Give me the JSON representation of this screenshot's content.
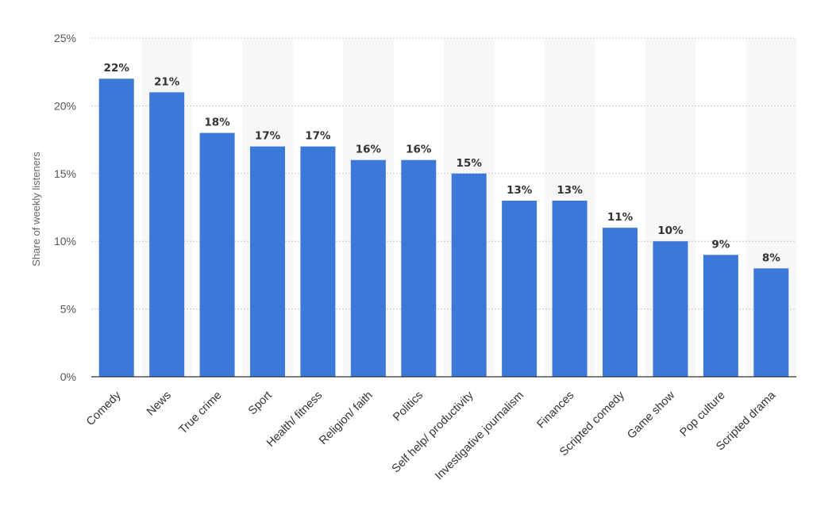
{
  "chart_data": {
    "type": "bar",
    "categories": [
      "Comedy",
      "News",
      "True crime",
      "Sport",
      "Health/ fitness",
      "Religion/ faith",
      "Politics",
      "Self help/ productivity",
      "Investigative journalism",
      "Finances",
      "Scripted comedy",
      "Game show",
      "Pop culture",
      "Scripted drama"
    ],
    "values": [
      22,
      21,
      18,
      17,
      17,
      16,
      16,
      15,
      13,
      13,
      11,
      10,
      9,
      8
    ],
    "data_labels": [
      "22%",
      "21%",
      "18%",
      "17%",
      "17%",
      "16%",
      "16%",
      "15%",
      "13%",
      "13%",
      "11%",
      "10%",
      "9%",
      "8%"
    ],
    "title": "",
    "xlabel": "",
    "ylabel": "Share of weekly listeners",
    "ylim": [
      0,
      25
    ],
    "yticks": [
      0,
      5,
      10,
      15,
      20,
      25
    ],
    "ytick_labels": [
      "0%",
      "5%",
      "10%",
      "15%",
      "20%",
      "25%"
    ],
    "grid": true,
    "legend": "none",
    "colors": {
      "bar": "#3c78d8",
      "band": "#f7f7f7",
      "grid": "#c8c8c8",
      "axis": "#333333"
    }
  }
}
